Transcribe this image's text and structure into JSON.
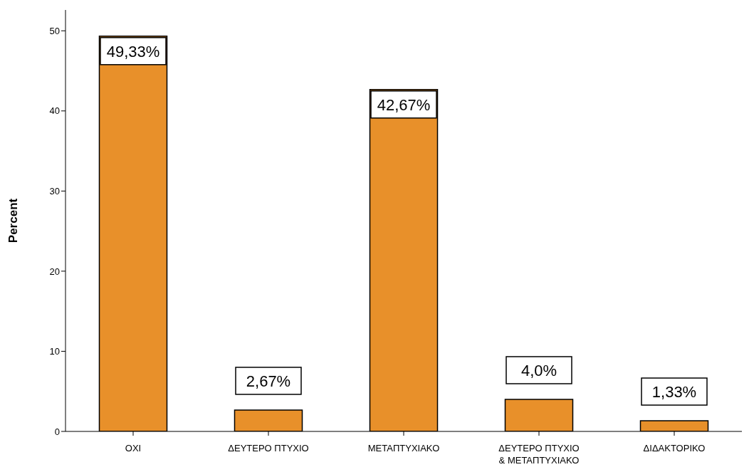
{
  "chart_data": {
    "type": "bar",
    "ylabel": "Percent",
    "categories": [
      "ΟΧΙ",
      "ΔΕΥΤΕΡΟ ΠΤΥΧΙΟ",
      "ΜΕΤΑΠΤΥΧΙΑΚΟ",
      "ΔΕΥΤΕΡΟ ΠΤΥΧΙΟ & ΜΕΤΑΠΤΥΧΙΑΚΟ",
      "ΔΙΔΑΚΤΟΡΙΚΟ"
    ],
    "values": [
      49.33,
      2.67,
      42.67,
      4.0,
      1.33
    ],
    "value_labels": [
      "49,33%",
      "2,67%",
      "42,67%",
      "4,0%",
      "1,33%"
    ],
    "color": "#e8902a",
    "ylim": [
      0,
      52.6
    ],
    "yticks": [
      0,
      10,
      20,
      30,
      40,
      50
    ]
  }
}
